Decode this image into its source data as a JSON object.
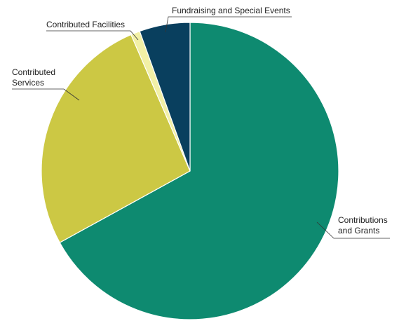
{
  "chart_data": {
    "type": "pie",
    "title": "",
    "slices": [
      {
        "label": "Contributions and Grants",
        "lines": [
          "Contributions",
          "and Grants"
        ],
        "value": 67.0,
        "color": "#0e8a70"
      },
      {
        "label": "Contributed Services",
        "lines": [
          "Contributed",
          "Services"
        ],
        "value": 26.5,
        "color": "#ccc844"
      },
      {
        "label": "Contributed Facilities",
        "lines": [
          "Contributed Facilities"
        ],
        "value": 1.0,
        "color": "#f2f0a6"
      },
      {
        "label": "Fundraising and Special Events",
        "lines": [
          "Fundraising and Special Events"
        ],
        "value": 5.5,
        "color": "#093f5e"
      }
    ],
    "start_angle": "12 o'clock",
    "direction": "clockwise",
    "legend": "none",
    "labels": "outside with leader lines"
  }
}
